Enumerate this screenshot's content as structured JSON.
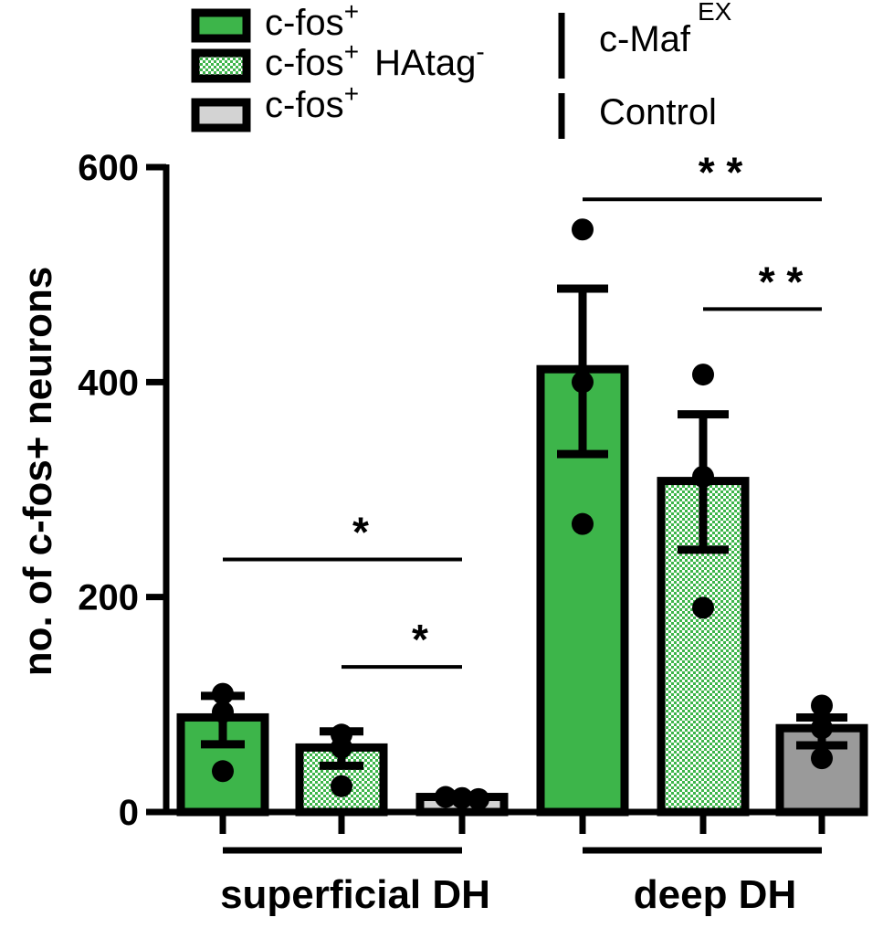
{
  "chart_data": {
    "type": "bar",
    "ylabel": "no. of c-fos+ neurons",
    "ylim": [
      0,
      600
    ],
    "yticks": [
      "0",
      "200",
      "400",
      "600"
    ],
    "groups": [
      {
        "name": "superficial DH",
        "categories": [
          "c-fos+ c-Maf EX",
          "c-fos+ HAtag- c-Maf EX",
          "c-fos+ Control"
        ]
      },
      {
        "name": "deep DH",
        "categories": [
          "c-fos+ c-Maf EX",
          "c-fos+ HAtag- c-Maf EX",
          "c-fos+ Control"
        ]
      }
    ],
    "series": [
      {
        "key": "cfos",
        "color": "#3db54a",
        "pattern": "solid"
      },
      {
        "key": "cfos_hatag",
        "color": "#3db54a",
        "pattern": "checker"
      },
      {
        "key": "control",
        "color_superficial": "#d3d3d3",
        "color_deep": "#9a9a9a",
        "pattern": "solid"
      }
    ],
    "bars": [
      {
        "group": 0,
        "series": 0,
        "mean": 88,
        "err_low": 63,
        "err_high": 108,
        "points": [
          110,
          93,
          38
        ]
      },
      {
        "group": 0,
        "series": 1,
        "mean": 60,
        "err_low": 43,
        "err_high": 75,
        "points": [
          72,
          60,
          24
        ]
      },
      {
        "group": 0,
        "series": 2,
        "mean": 14,
        "err_low": 11,
        "err_high": 15,
        "points": [
          14,
          13,
          12
        ]
      },
      {
        "group": 1,
        "series": 0,
        "mean": 412,
        "err_low": 333,
        "err_high": 487,
        "points": [
          542,
          400,
          268
        ]
      },
      {
        "group": 1,
        "series": 1,
        "mean": 308,
        "err_low": 244,
        "err_high": 370,
        "points": [
          407,
          312,
          190
        ]
      },
      {
        "group": 1,
        "series": 2,
        "mean": 78,
        "err_low": 62,
        "err_high": 88,
        "points": [
          99,
          78,
          50
        ]
      }
    ],
    "legend": {
      "entries": [
        {
          "label": "c-fos",
          "sup": "+",
          "suffix": "",
          "suffix_sup": ""
        },
        {
          "label": "c-fos",
          "sup": "+",
          "suffix": " HAtag",
          "suffix_sup": "-"
        },
        {
          "label": "c-fos",
          "sup": "+",
          "suffix": "",
          "suffix_sup": ""
        }
      ],
      "groups": [
        {
          "label": "c-Maf",
          "sup": "EX"
        },
        {
          "label": "Control",
          "sup": ""
        }
      ]
    },
    "significance": [
      {
        "label": "*",
        "from": 0,
        "to": 2,
        "y": 235
      },
      {
        "label": "*",
        "from": 1,
        "to": 2,
        "y": 135
      },
      {
        "label": "* *",
        "from": 3,
        "to": 5,
        "y": 570
      },
      {
        "label": "* *",
        "from": 4,
        "to": 5,
        "y": 468
      }
    ]
  }
}
